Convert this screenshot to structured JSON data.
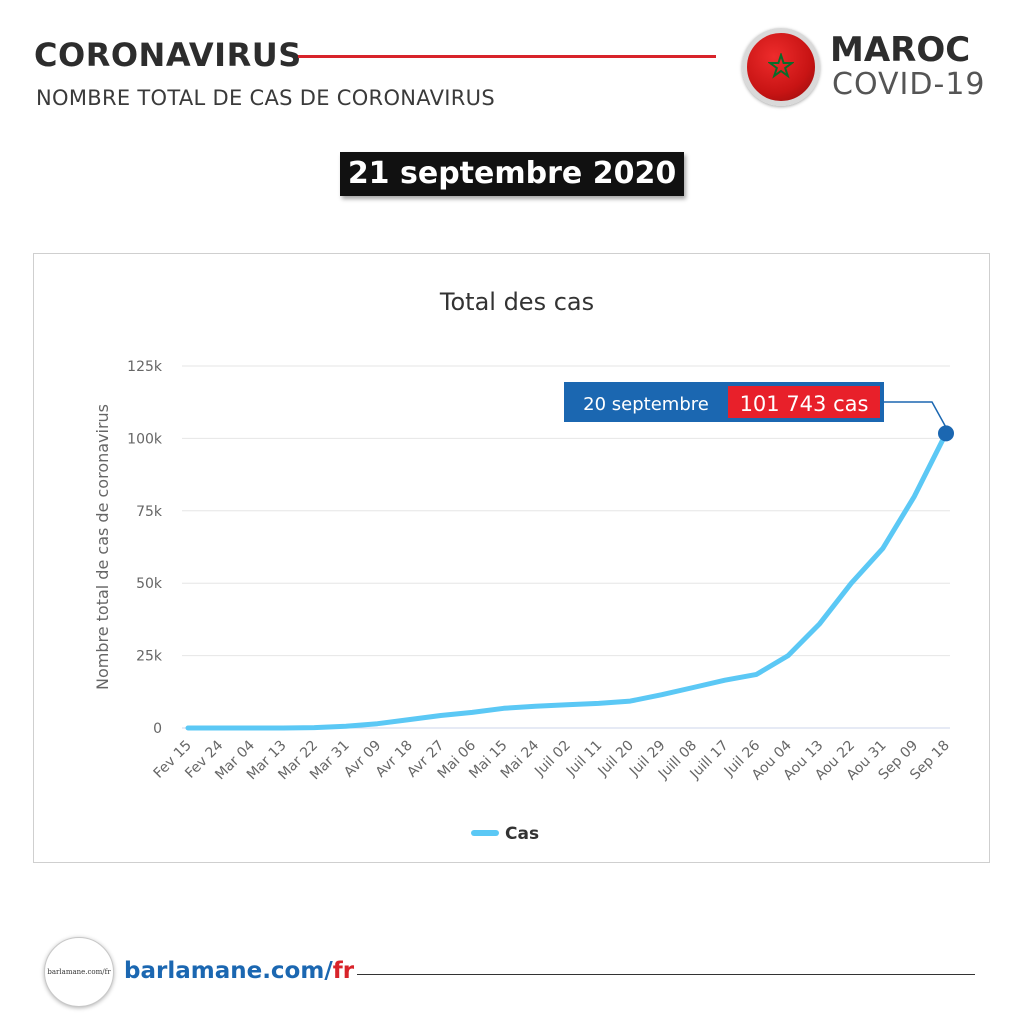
{
  "header": {
    "title": "CORONAVIRUS",
    "subtitle": "NOMBRE TOTAL DE CAS DE CORONAVIRUS",
    "country": "MAROC",
    "covid_label": "COVID-19",
    "flag_icon": "morocco-flag-icon"
  },
  "date_badge": "21 septembre 2020",
  "colors": {
    "accent_red": "#d8232a",
    "series": "#5bc8f5",
    "callout_blue": "#1b67b1",
    "callout_red": "#e8202a"
  },
  "callout": {
    "date": "20 septembre",
    "value": "101 743 cas"
  },
  "footer": {
    "logo_text": "barlamane.com/fr",
    "url_main": "barlamane.com",
    "url_slash": "/",
    "url_fr": "fr"
  },
  "chart_data": {
    "type": "line",
    "title": "Total des cas",
    "ylabel": "Nombre total de cas de coronavirus",
    "xlabel": "",
    "ylim": [
      0,
      125000
    ],
    "yticks": [
      0,
      25000,
      50000,
      75000,
      100000,
      125000
    ],
    "ytick_labels": [
      "0",
      "25k",
      "50k",
      "75k",
      "100k",
      "125k"
    ],
    "xtick_labels": [
      "Fev 15",
      "Fev 24",
      "Mar 04",
      "Mar 13",
      "Mar 22",
      "Mar 31",
      "Avr 09",
      "Avr 18",
      "Avr 27",
      "Mai 06",
      "Mai 15",
      "Mai 24",
      "Juil 02",
      "Juil 11",
      "Juil 20",
      "Juil 29",
      "Juill 08",
      "Juill 17",
      "Juil 26",
      "Aou 04",
      "Aou 13",
      "Aou 22",
      "Aou 31",
      "Sep 09",
      "Sep 18"
    ],
    "grid": true,
    "legend_position": "bottom",
    "series": [
      {
        "name": "Cas",
        "values": [
          0,
          0,
          0,
          0,
          150,
          600,
          1500,
          2900,
          4300,
          5400,
          6800,
          7500,
          8000,
          8500,
          9300,
          11500,
          14000,
          16500,
          18500,
          25000,
          36000,
          50000,
          62000,
          80000,
          101743
        ]
      }
    ],
    "highlight": {
      "index": 24,
      "value": 101743
    }
  }
}
